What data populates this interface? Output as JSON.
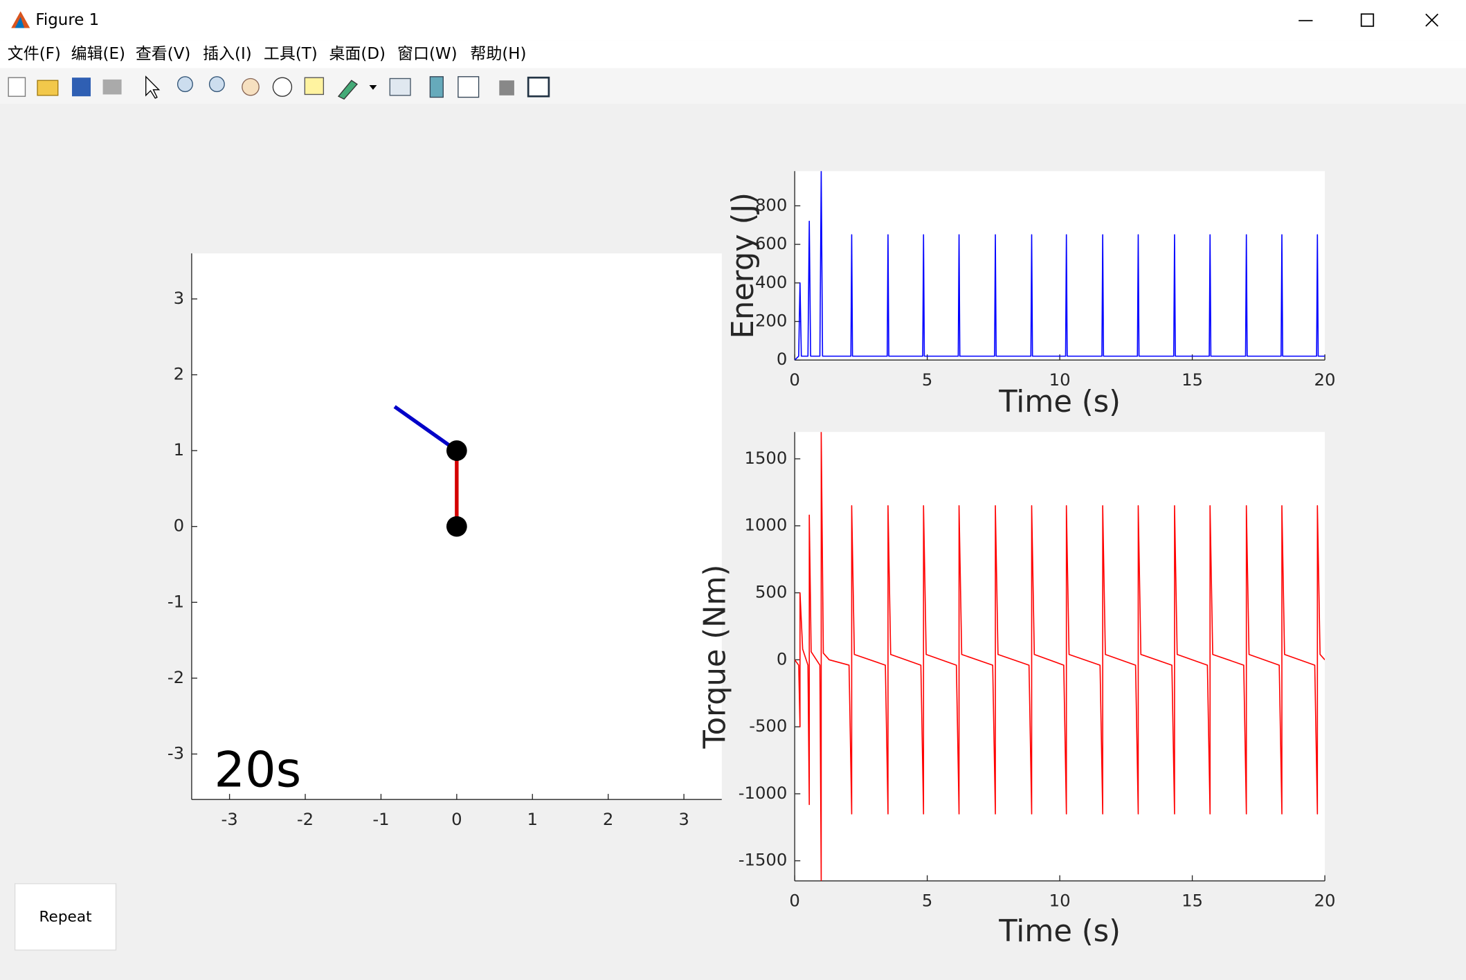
{
  "window": {
    "title": "Figure 1"
  },
  "menu": [
    "文件(F)",
    "编辑(E)",
    "查看(V)",
    "插入(I)",
    "工具(T)",
    "桌面(D)",
    "窗口(W)",
    "帮助(H)"
  ],
  "chart_data": [
    {
      "type": "line",
      "annotation": "20s",
      "xlim": [
        -3.5,
        3.5
      ],
      "ylim": [
        -3.6,
        3.6
      ],
      "xticks": [
        -3,
        -2,
        -1,
        0,
        1,
        2,
        3
      ],
      "yticks": [
        -3,
        -2,
        -1,
        0,
        1,
        2,
        3
      ],
      "series": [
        {
          "color": "#d40000",
          "x": [
            0,
            0
          ],
          "values": [
            0,
            1
          ]
        },
        {
          "color": "#0000c8",
          "x": [
            0,
            -0.82
          ],
          "values": [
            1,
            1.58
          ]
        }
      ],
      "points": {
        "color": "#000000",
        "x": [
          0,
          0
        ],
        "values": [
          0,
          1
        ]
      }
    },
    {
      "type": "line",
      "xlabel": "Time (s)",
      "ylabel": "Energy (J)",
      "xlim": [
        0,
        20
      ],
      "ylim": [
        0,
        980
      ],
      "xticks": [
        0,
        5,
        10,
        15,
        20
      ],
      "yticks": [
        0,
        200,
        400,
        600,
        800
      ],
      "x": [
        0,
        0.15,
        0.2,
        0.25,
        0.5,
        0.55,
        0.6,
        0.95,
        1,
        1.05,
        2.12,
        2.15,
        2.18,
        3.49,
        3.52,
        3.55,
        4.83,
        4.86,
        4.89,
        6.17,
        6.2,
        6.23,
        7.54,
        7.57,
        7.6,
        8.91,
        8.94,
        8.97,
        10.22,
        10.25,
        10.28,
        11.59,
        11.62,
        11.65,
        12.93,
        12.96,
        12.99,
        14.3,
        14.33,
        14.36,
        15.64,
        15.67,
        15.7,
        17.01,
        17.04,
        17.07,
        18.35,
        18.38,
        18.41,
        19.69,
        19.72,
        19.75,
        20
      ],
      "series": [
        {
          "color": "#0000ff",
          "values": [
            0,
            20,
            400,
            20,
            20,
            720,
            20,
            20,
            980,
            20,
            20,
            650,
            20,
            20,
            650,
            20,
            20,
            650,
            20,
            20,
            650,
            20,
            20,
            650,
            20,
            20,
            650,
            20,
            20,
            650,
            20,
            20,
            650,
            20,
            20,
            650,
            20,
            20,
            650,
            20,
            20,
            650,
            20,
            20,
            650,
            20,
            20,
            650,
            20,
            20,
            650,
            20,
            20
          ]
        }
      ]
    },
    {
      "type": "line",
      "xlabel": "Time (s)",
      "ylabel": "Torque (Nm)",
      "xlim": [
        0,
        20
      ],
      "ylim": [
        -1650,
        1700
      ],
      "xticks": [
        0,
        5,
        10,
        15,
        20
      ],
      "yticks": [
        -1500,
        -1000,
        -500,
        0,
        500,
        1000,
        1500
      ],
      "x": [
        0,
        0.15,
        0.2,
        0.2,
        0.3,
        0.5,
        0.55,
        0.55,
        0.62,
        0.95,
        1,
        1,
        1.08,
        1.3,
        2.05,
        2.15,
        2.15,
        2.25,
        3.42,
        3.52,
        3.52,
        3.62,
        4.76,
        4.86,
        4.86,
        4.96,
        6.1,
        6.2,
        6.2,
        6.3,
        7.47,
        7.57,
        7.57,
        7.67,
        8.84,
        8.94,
        8.94,
        9.04,
        10.15,
        10.25,
        10.25,
        10.35,
        11.52,
        11.62,
        11.62,
        11.72,
        12.86,
        12.96,
        12.96,
        13.06,
        14.23,
        14.33,
        14.33,
        14.43,
        15.57,
        15.67,
        15.67,
        15.77,
        16.94,
        17.04,
        17.04,
        17.14,
        18.28,
        18.38,
        18.38,
        18.48,
        19.62,
        19.72,
        19.72,
        19.82,
        20
      ],
      "series": [
        {
          "color": "#ff0000",
          "values": [
            0,
            -40,
            -500,
            500,
            80,
            -40,
            -1080,
            1080,
            60,
            -40,
            -1650,
            1700,
            50,
            0,
            -40,
            -1150,
            1150,
            40,
            -40,
            -1150,
            1150,
            40,
            -40,
            -1150,
            1150,
            40,
            -40,
            -1150,
            1150,
            40,
            -40,
            -1150,
            1150,
            40,
            -40,
            -1150,
            1150,
            40,
            -40,
            -1150,
            1150,
            40,
            -40,
            -1150,
            1150,
            40,
            -40,
            -1150,
            1150,
            40,
            -40,
            -1150,
            1150,
            40,
            -40,
            -1150,
            1150,
            40,
            -40,
            -1150,
            1150,
            40,
            -40,
            -1150,
            1150,
            40,
            -40,
            -1150,
            1150,
            40,
            0
          ]
        }
      ]
    }
  ],
  "button": {
    "label": "Repeat"
  }
}
